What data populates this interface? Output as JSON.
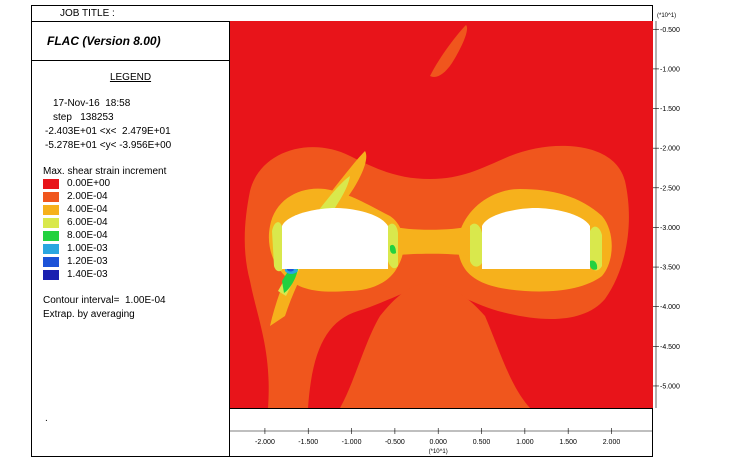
{
  "job_title": "JOB TITLE :",
  "program": "FLAC (Version 8.00)",
  "legend": {
    "title": "LEGEND",
    "date_time": "17-Nov-16  18:58",
    "step": "step   138253",
    "x_range": "-2.403E+01 <x<  2.479E+01",
    "y_range": "-5.278E+01 <y< -3.956E+00",
    "contour_title": "Max. shear strain increment",
    "levels": [
      {
        "label": "0.00E+00",
        "color": "#e8141a"
      },
      {
        "label": "2.00E-04",
        "color": "#f0561d"
      },
      {
        "label": "4.00E-04",
        "color": "#f6b11c"
      },
      {
        "label": "6.00E-04",
        "color": "#d9e84c"
      },
      {
        "label": "8.00E-04",
        "color": "#22d13f"
      },
      {
        "label": "1.00E-03",
        "color": "#2aa6e0"
      },
      {
        "label": "1.20E-03",
        "color": "#1d53d8"
      },
      {
        "label": "1.40E-03",
        "color": "#1a1fb0"
      }
    ],
    "contour_interval": "Contour interval=  1.00E-04",
    "extrap": "Extrap. by averaging",
    "dot": "."
  },
  "chart_data": {
    "type": "heatmap",
    "title": "",
    "xlabel": "",
    "ylabel": "",
    "x_multiplier": "(*10^1)",
    "y_multiplier": "(*10^1)",
    "x_ticks": [
      "-2.000",
      "-1.500",
      "-1.000",
      "-0.500",
      "0.000",
      "0.500",
      "1.000",
      "1.500",
      "2.000"
    ],
    "y_ticks": [
      "-0.500",
      "-1.000",
      "-1.500",
      "-2.000",
      "-2.500",
      "-3.000",
      "-3.500",
      "-4.000",
      "-4.500",
      "-5.000"
    ],
    "x_tick_values": [
      -2.0,
      -1.5,
      -1.0,
      -0.5,
      0.0,
      0.5,
      1.0,
      1.5,
      2.0
    ],
    "y_tick_values": [
      -0.5,
      -1.0,
      -1.5,
      -2.0,
      -2.5,
      -3.0,
      -3.5,
      -4.0,
      -4.5,
      -5.0
    ],
    "xlim": [
      -2.403,
      2.479
    ],
    "ylim": [
      -5.278,
      -0.3956
    ],
    "color_scale": "max shear strain increment, 0 to 1.4E-03",
    "background_level": "0.00E+00",
    "openings": [
      {
        "name": "left opening",
        "x_range": [
          -1.75,
          -0.45
        ],
        "y_range": [
          -3.35,
          -2.5
        ]
      },
      {
        "name": "right opening",
        "x_range": [
          0.5,
          1.8
        ],
        "y_range": [
          -3.35,
          -2.5
        ]
      }
    ]
  }
}
